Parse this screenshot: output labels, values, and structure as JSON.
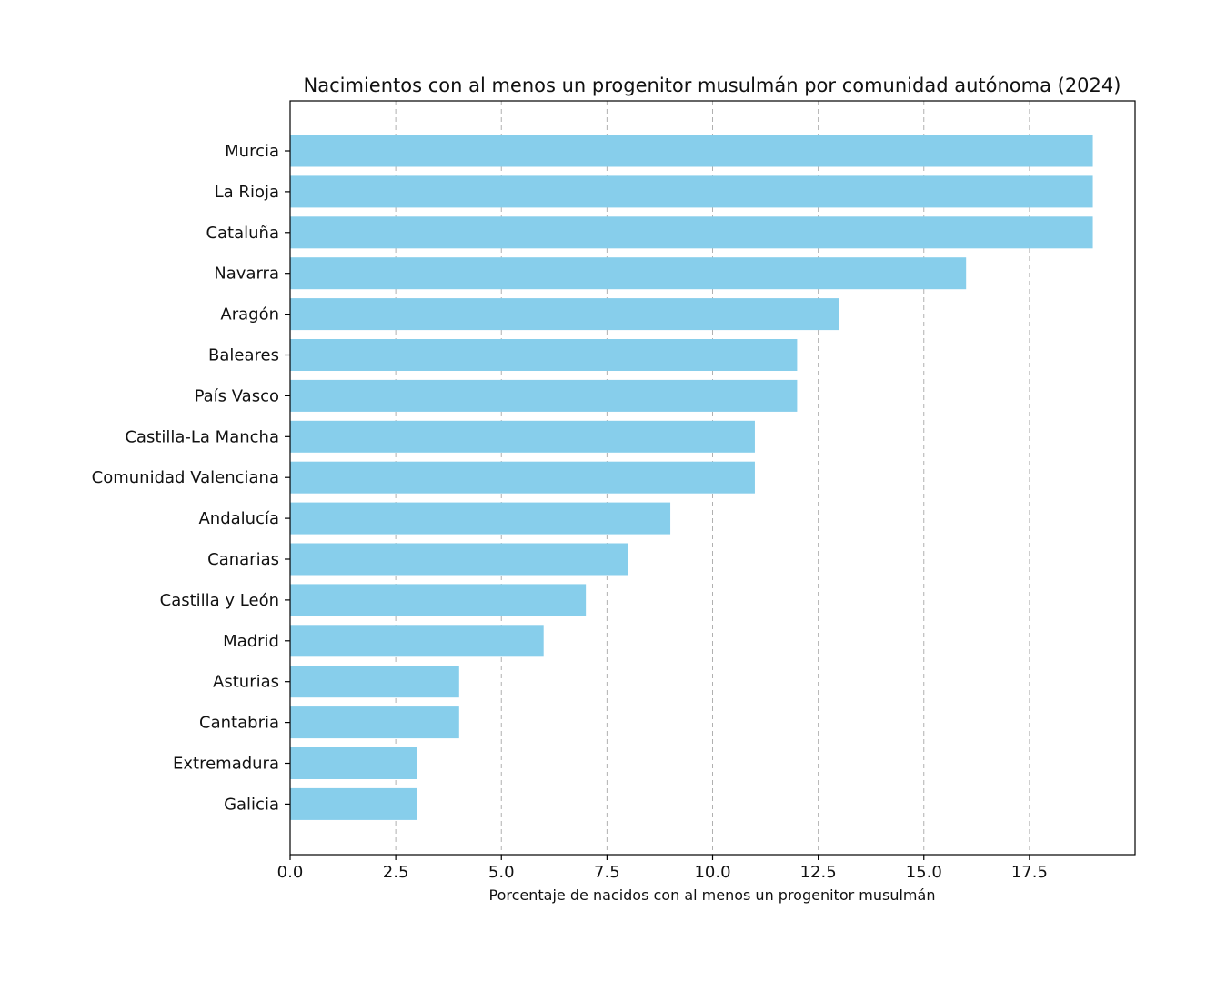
{
  "chart_data": {
    "type": "bar",
    "orientation": "horizontal",
    "title": "Nacimientos con al menos un progenitor musulmán por comunidad autónoma (2024)",
    "xlabel": "Porcentaje de nacidos con al menos un progenitor musulmán",
    "ylabel": "",
    "xlim": [
      0,
      20
    ],
    "xticks": [
      0.0,
      2.5,
      5.0,
      7.5,
      10.0,
      12.5,
      15.0,
      17.5
    ],
    "xtick_labels": [
      "0.0",
      "2.5",
      "5.0",
      "7.5",
      "10.0",
      "12.5",
      "15.0",
      "17.5"
    ],
    "grid": "vertical dashed",
    "bar_color": "#87ceeb",
    "categories": [
      "Murcia",
      "La Rioja",
      "Cataluña",
      "Navarra",
      "Aragón",
      "Baleares",
      "País Vasco",
      "Castilla-La Mancha",
      "Comunidad Valenciana",
      "Andalucía",
      "Canarias",
      "Castilla y León",
      "Madrid",
      "Asturias",
      "Cantabria",
      "Extremadura",
      "Galicia"
    ],
    "values": [
      19,
      19,
      19,
      16,
      13,
      12,
      12,
      11,
      11,
      9,
      8,
      7,
      6,
      4,
      4,
      3,
      3
    ]
  }
}
